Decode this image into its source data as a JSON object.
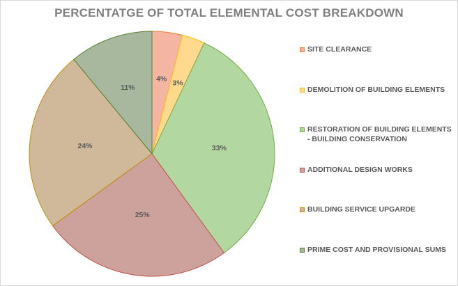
{
  "chart_data": {
    "type": "pie",
    "title": "PERCENTATGE OF TOTAL ELEMENTAL COST BREAKDOWN",
    "categories": [
      "SITE CLEARANCE",
      "DEMOLITION OF BUILDING ELEMENTS",
      "RESTORATION OF BUILDING ELEMENTS - BUILDING CONSERVATION",
      "ADDITIONAL DESIGN WORKS",
      "BUILDING SERVICE UPGARDE",
      "PRIME COST AND PROVISIONAL SUMS"
    ],
    "values": [
      4,
      3,
      33,
      25,
      24,
      11
    ],
    "labels": [
      "4%",
      "3%",
      "33%",
      "25%",
      "24%",
      "11%"
    ],
    "colors": [
      "#f4b5a2",
      "#fed98e",
      "#b3d7a0",
      "#cea29c",
      "#cfb99a",
      "#a8b89f"
    ],
    "border_colors": [
      "#ed7d31",
      "#ffc000",
      "#70ad47",
      "#c0504d",
      "#bf9000",
      "#548235"
    ],
    "legend_position": "right",
    "start_angle": "top, clockwise"
  }
}
